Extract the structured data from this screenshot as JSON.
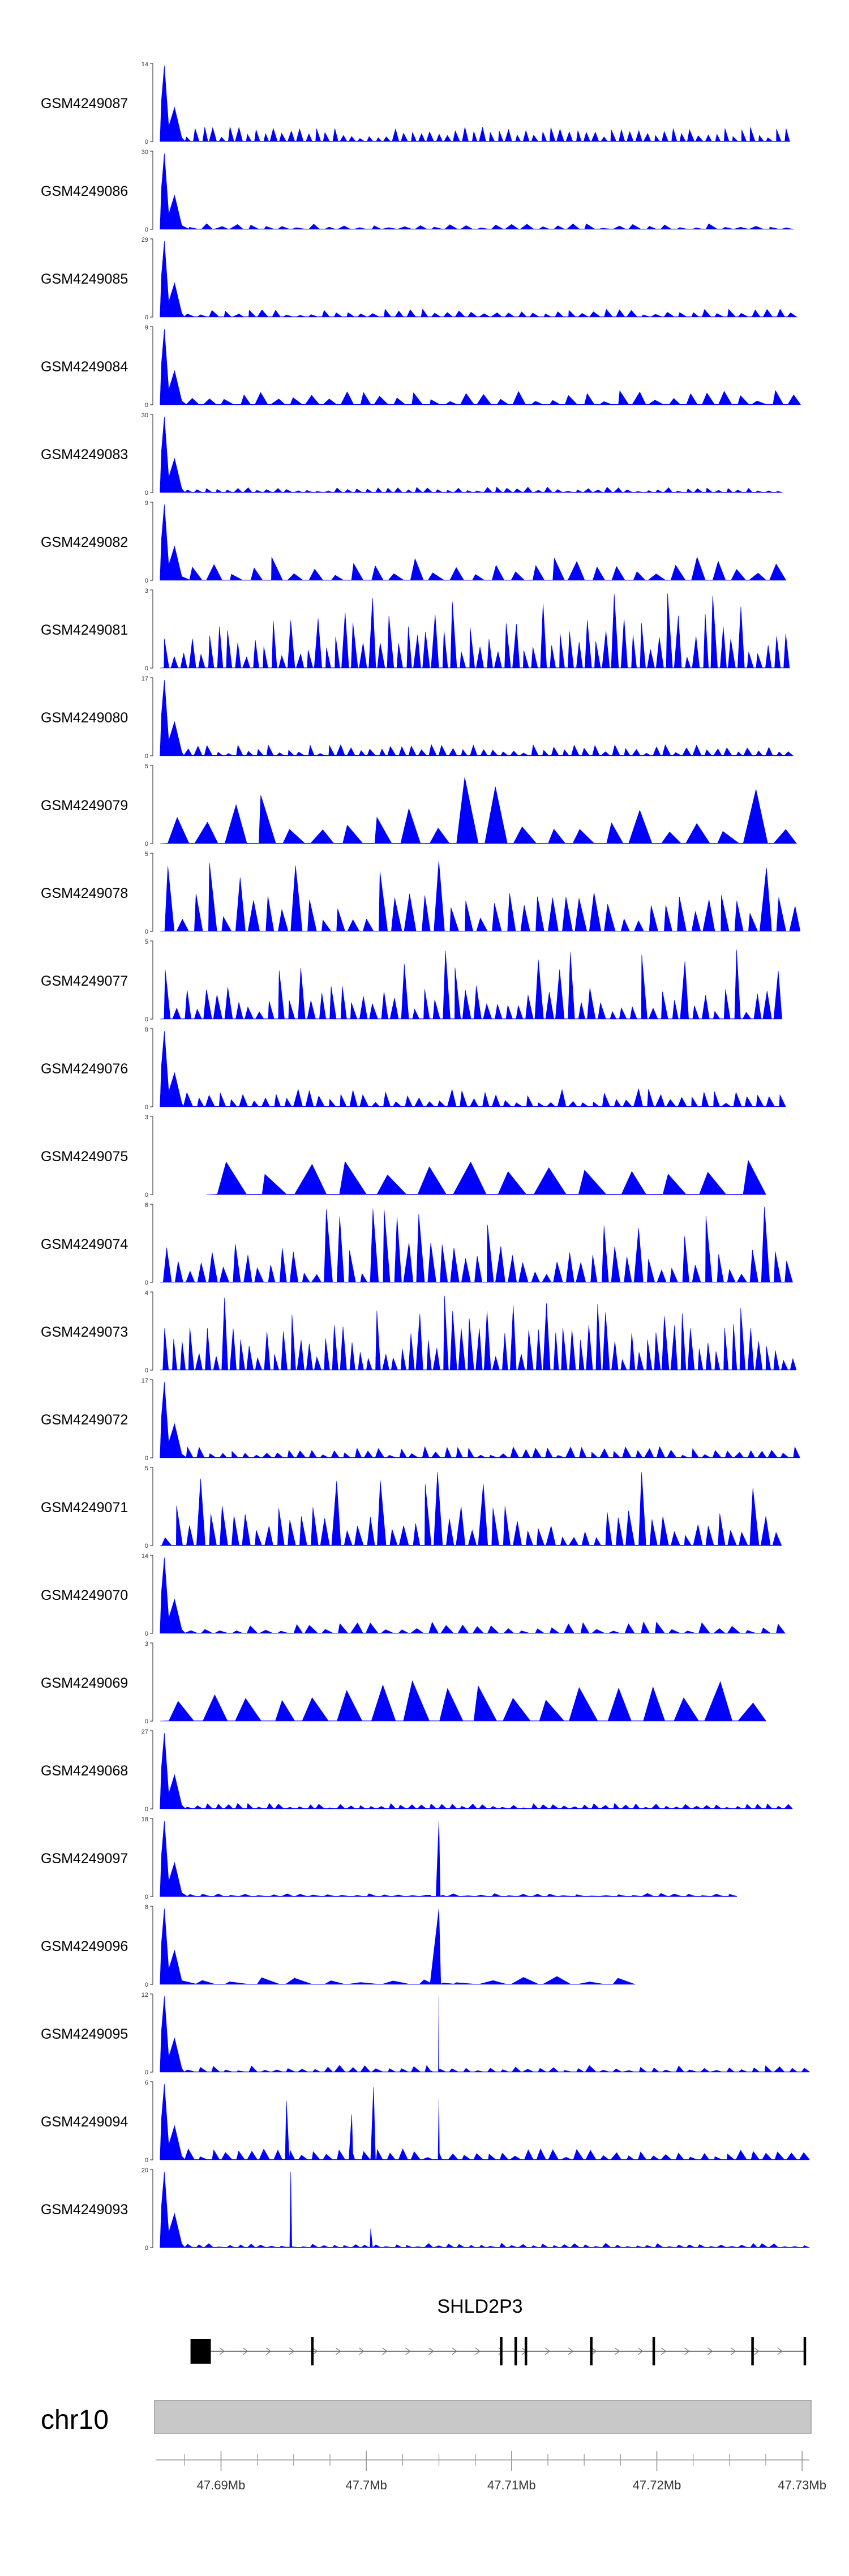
{
  "chart_data": {
    "type": "area",
    "title": "",
    "color": "#0000ff",
    "chromosome": "chr10",
    "gene": {
      "name": "SHLD2P3",
      "strand": "+",
      "start": 47.6879,
      "end": 47.7302,
      "exons": [
        [
          47.6879,
          47.6893
        ],
        [
          47.6962,
          47.6963
        ],
        [
          47.7092,
          47.7093
        ],
        [
          47.7102,
          47.7103
        ],
        [
          47.7109,
          47.711
        ],
        [
          47.7154,
          47.7155
        ],
        [
          47.7197,
          47.7198
        ],
        [
          47.7265,
          47.7266
        ],
        [
          47.7301,
          47.7302
        ]
      ]
    },
    "axis": {
      "xlim": [
        47.6855,
        47.7305
      ],
      "ticks": [
        47.69,
        47.7,
        47.71,
        47.72,
        47.73
      ],
      "tick_labels": [
        "47.69Mb",
        "47.7Mb",
        "47.71Mb",
        "47.72Mb",
        "47.73Mb"
      ],
      "minor_step": 0.0025
    },
    "series": [
      {
        "name": "GSM4249087",
        "ymax": 14,
        "shape": "early",
        "seed": 87,
        "n": 70,
        "level": 0.13
      },
      {
        "name": "GSM4249086",
        "ymax": 30,
        "shape": "early",
        "seed": 86,
        "n": 40,
        "level": 0.05
      },
      {
        "name": "GSM4249085",
        "ymax": 29,
        "shape": "early",
        "seed": 85,
        "n": 50,
        "level": 0.07
      },
      {
        "name": "GSM4249084",
        "ymax": 9,
        "shape": "early",
        "seed": 84,
        "n": 36,
        "level": 0.13
      },
      {
        "name": "GSM4249083",
        "ymax": 30,
        "shape": "early",
        "seed": 83,
        "n": 60,
        "level": 0.05
      },
      {
        "name": "GSM4249082",
        "ymax": 9,
        "shape": "early",
        "seed": 82,
        "n": 30,
        "level": 0.22
      },
      {
        "name": "GSM4249081",
        "ymax": 3,
        "shape": "spiky",
        "seed": 81,
        "n": 70,
        "level": 0.45
      },
      {
        "name": "GSM4249080",
        "ymax": 17,
        "shape": "early",
        "seed": 80,
        "n": 60,
        "level": 0.1
      },
      {
        "name": "GSM4249079",
        "ymax": 5,
        "shape": "spiky",
        "seed": 79,
        "n": 22,
        "level": 0.35
      },
      {
        "name": "GSM4249078",
        "ymax": 5,
        "shape": "spiky",
        "seed": 78,
        "n": 45,
        "level": 0.35
      },
      {
        "name": "GSM4249077",
        "ymax": 5,
        "shape": "spiky",
        "seed": 77,
        "n": 60,
        "level": 0.3
      },
      {
        "name": "GSM4249076",
        "ymax": 8,
        "shape": "early",
        "seed": 76,
        "n": 55,
        "level": 0.16
      },
      {
        "name": "GSM4249075",
        "ymax": 3,
        "shape": "sparse",
        "seed": 75,
        "n": 14,
        "level": 0.35
      },
      {
        "name": "GSM4249074",
        "ymax": 6,
        "shape": "spiky",
        "seed": 74,
        "n": 55,
        "level": 0.35
      },
      {
        "name": "GSM4249073",
        "ymax": 4,
        "shape": "spiky",
        "seed": 73,
        "n": 75,
        "level": 0.4
      },
      {
        "name": "GSM4249072",
        "ymax": 17,
        "shape": "early",
        "seed": 72,
        "n": 55,
        "level": 0.1
      },
      {
        "name": "GSM4249071",
        "ymax": 5,
        "shape": "spiky",
        "seed": 71,
        "n": 55,
        "level": 0.35
      },
      {
        "name": "GSM4249070",
        "ymax": 14,
        "shape": "early",
        "seed": 70,
        "n": 40,
        "level": 0.1
      },
      {
        "name": "GSM4249069",
        "ymax": 3,
        "shape": "sparse",
        "seed": 69,
        "n": 18,
        "level": 0.38
      },
      {
        "name": "GSM4249068",
        "ymax": 27,
        "shape": "early",
        "seed": 68,
        "n": 60,
        "level": 0.05
      },
      {
        "name": "GSM4249097",
        "ymax": 18,
        "shape": "peak",
        "seed": 97,
        "n": 40,
        "level": 0.03,
        "peak_at": 47.705,
        "end": 47.7255
      },
      {
        "name": "GSM4249096",
        "ymax": 8,
        "shape": "peak",
        "seed": 96,
        "n": 14,
        "level": 0.07,
        "peak_at": 47.705,
        "end": 47.7185
      },
      {
        "name": "GSM4249095",
        "ymax": 12,
        "shape": "peak",
        "seed": 95,
        "n": 50,
        "level": 0.06,
        "peak_at": 47.705,
        "end": 47.7305
      },
      {
        "name": "GSM4249094",
        "ymax": 6,
        "shape": "multi",
        "seed": 94,
        "n": 50,
        "level": 0.1,
        "end": 47.7305
      },
      {
        "name": "GSM4249093",
        "ymax": 20,
        "shape": "multi93",
        "seed": 93,
        "n": 60,
        "level": 0.04,
        "end": 47.7305
      }
    ]
  }
}
